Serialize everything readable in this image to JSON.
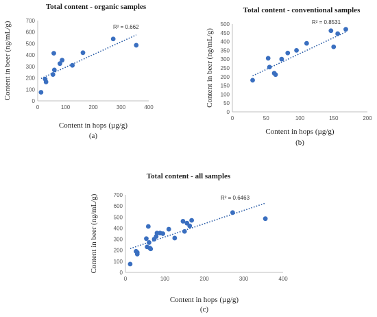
{
  "colors": {
    "point": "#3a6fc0",
    "trendline": "#2e5fa8",
    "axis": "#bfbfbf"
  },
  "chart_data": [
    {
      "type": "scatter",
      "title": "Total content - organic samples",
      "xlabel": "Content in hops (µg/g)",
      "ylabel": "Content in beer  (ng/mL/g)",
      "caption": "(a)",
      "r2_label": "R² = 0.662",
      "xlim": [
        0,
        400
      ],
      "ylim": [
        0,
        700
      ],
      "xticks": [
        "0",
        "100",
        "200",
        "300",
        "400"
      ],
      "yticks": [
        "0",
        "100",
        "200",
        "300",
        "400",
        "500",
        "600",
        "700"
      ],
      "x": [
        12,
        27,
        30,
        55,
        58,
        60,
        80,
        88,
        125,
        163,
        272,
        355
      ],
      "y": [
        75,
        190,
        165,
        230,
        415,
        270,
        325,
        355,
        310,
        420,
        540,
        485
      ],
      "trendline": {
        "kind": "linear",
        "x": [
          12,
          355
        ],
        "y": [
          195,
          575
        ]
      }
    },
    {
      "type": "scatter",
      "title": "Total content - conventional samples",
      "xlabel": "Content in hops (µg/g)",
      "ylabel": "Content in beer (ng/mL/g)",
      "caption": "(b)",
      "r2_label": "R² = 0.8531",
      "xlim": [
        0,
        200
      ],
      "ylim": [
        0,
        500
      ],
      "xticks": [
        "0",
        "50",
        "100",
        "150",
        "200"
      ],
      "yticks": [
        "0",
        "50",
        "100",
        "150",
        "200",
        "250",
        "300",
        "350",
        "400",
        "450",
        "500"
      ],
      "x": [
        30,
        53,
        55,
        62,
        64,
        73,
        82,
        95,
        110,
        146,
        150,
        156,
        168
      ],
      "y": [
        180,
        305,
        255,
        220,
        212,
        300,
        335,
        350,
        390,
        462,
        370,
        445,
        470
      ],
      "trendline": {
        "kind": "linear",
        "x": [
          30,
          168
        ],
        "y": [
          205,
          455
        ]
      }
    },
    {
      "type": "scatter",
      "title": "Total content - all samples",
      "xlabel": "Content in hops (µg/g)",
      "ylabel": "Content in beer (ng/mL/g)",
      "caption": "(c)",
      "r2_label": "R² = 0.6463",
      "xlim": [
        0,
        400
      ],
      "ylim": [
        0,
        700
      ],
      "xticks": [
        "0",
        "100",
        "200",
        "300",
        "400"
      ],
      "yticks": [
        "0",
        "100",
        "200",
        "300",
        "400",
        "500",
        "600",
        "700"
      ],
      "x": [
        12,
        27,
        30,
        30,
        53,
        55,
        58,
        60,
        62,
        64,
        73,
        78,
        80,
        88,
        95,
        110,
        125,
        146,
        150,
        156,
        163,
        168,
        272,
        355
      ],
      "y": [
        75,
        190,
        180,
        165,
        305,
        230,
        415,
        270,
        220,
        212,
        300,
        325,
        355,
        355,
        350,
        390,
        310,
        462,
        370,
        445,
        420,
        470,
        540,
        485
      ],
      "trendline": {
        "kind": "linear",
        "x": [
          12,
          355
        ],
        "y": [
          215,
          625
        ]
      }
    }
  ]
}
